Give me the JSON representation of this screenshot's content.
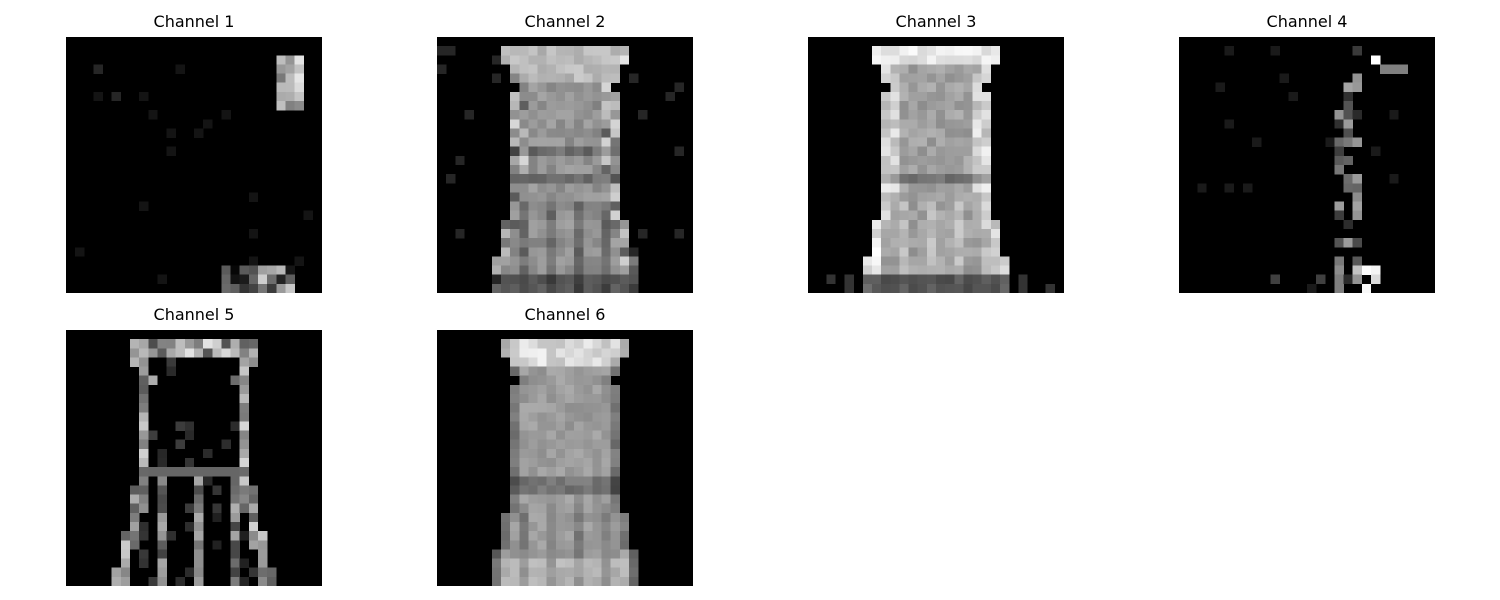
{
  "figure": {
    "panels": [
      {
        "title": "Channel 1",
        "pattern": "ch1"
      },
      {
        "title": "Channel 2",
        "pattern": "ch2"
      },
      {
        "title": "Channel 3",
        "pattern": "ch3"
      },
      {
        "title": "Channel 4",
        "pattern": "ch4"
      },
      {
        "title": "Channel 5",
        "pattern": "ch5"
      },
      {
        "title": "Channel 6",
        "pattern": "ch6"
      }
    ],
    "colormap": "gray",
    "grid_resolution": "28x28",
    "background_color": "#ffffff"
  }
}
